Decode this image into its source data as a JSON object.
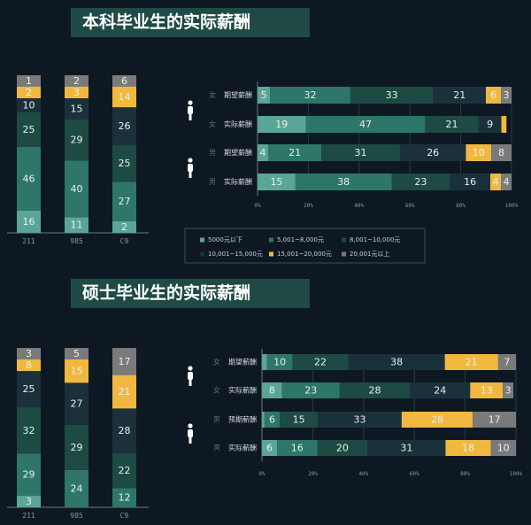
{
  "colors": {
    "lt5000": "#5aa596",
    "r5_8": "#2e7668",
    "r8_10": "#1e4a44",
    "r10_15": "#1a313b",
    "r15_20": "#f1b840",
    "gt20": "#7a7a7a",
    "background": "#0e1822",
    "title_bg": "#1f4a45"
  },
  "legend": [
    "5000元以下",
    "5,001~8,000元",
    "8,001~10,000元",
    "10,001~15,000元",
    "15,001~20,000元",
    "20,001元以上"
  ],
  "chart_data": [
    {
      "type": "bar",
      "stacked": true,
      "orientation": "vertical",
      "title": "本科毕业生的实际薪酬",
      "categories": [
        "211",
        "985",
        "C9"
      ],
      "series": [
        [
          16,
          11,
          2
        ],
        [
          46,
          40,
          27
        ],
        [
          25,
          29,
          25
        ],
        [
          10,
          15,
          26
        ],
        [
          2,
          3,
          14
        ],
        [
          1,
          2,
          6
        ]
      ]
    },
    {
      "type": "bar",
      "stacked": true,
      "orientation": "horizontal",
      "xticks": [
        "0%",
        "20%",
        "40%",
        "60%",
        "80%",
        "100%"
      ],
      "xlim": [
        0,
        100
      ],
      "rows": [
        {
          "gender": "女",
          "label": "期望薪酬",
          "values": [
            5,
            32,
            33,
            21,
            6,
            3
          ]
        },
        {
          "gender": "女",
          "label": "实际薪酬",
          "values": [
            19,
            47,
            21,
            9,
            2,
            null
          ]
        },
        {
          "gender": "男",
          "label": "期望薪酬",
          "values": [
            4,
            21,
            31,
            26,
            10,
            8
          ]
        },
        {
          "gender": "男",
          "label": "实际薪酬",
          "values": [
            15,
            38,
            23,
            16,
            4,
            4
          ]
        }
      ]
    },
    {
      "type": "bar",
      "stacked": true,
      "orientation": "vertical",
      "title": "硕士毕业生的实际薪酬",
      "categories": [
        "211",
        "985",
        "C9"
      ],
      "series": [
        [
          3,
          0,
          0
        ],
        [
          29,
          24,
          12
        ],
        [
          32,
          29,
          22
        ],
        [
          25,
          27,
          28
        ],
        [
          8,
          15,
          21
        ],
        [
          3,
          5,
          17
        ]
      ]
    },
    {
      "type": "bar",
      "stacked": true,
      "orientation": "horizontal",
      "xticks": [
        "0%",
        "20%",
        "40%",
        "60%",
        "80%",
        "100%"
      ],
      "xlim": [
        0,
        100
      ],
      "rows": [
        {
          "gender": "女",
          "label": "期望薪酬",
          "values": [
            2,
            10,
            22,
            38,
            21,
            7
          ]
        },
        {
          "gender": "女",
          "label": "实际薪酬",
          "values": [
            8,
            23,
            28,
            24,
            13,
            3
          ]
        },
        {
          "gender": "男",
          "label": "预期薪酬",
          "values": [
            1,
            6,
            15,
            33,
            28,
            17
          ]
        },
        {
          "gender": "男",
          "label": "实际薪酬",
          "values": [
            6,
            16,
            20,
            31,
            18,
            10
          ]
        }
      ]
    }
  ]
}
